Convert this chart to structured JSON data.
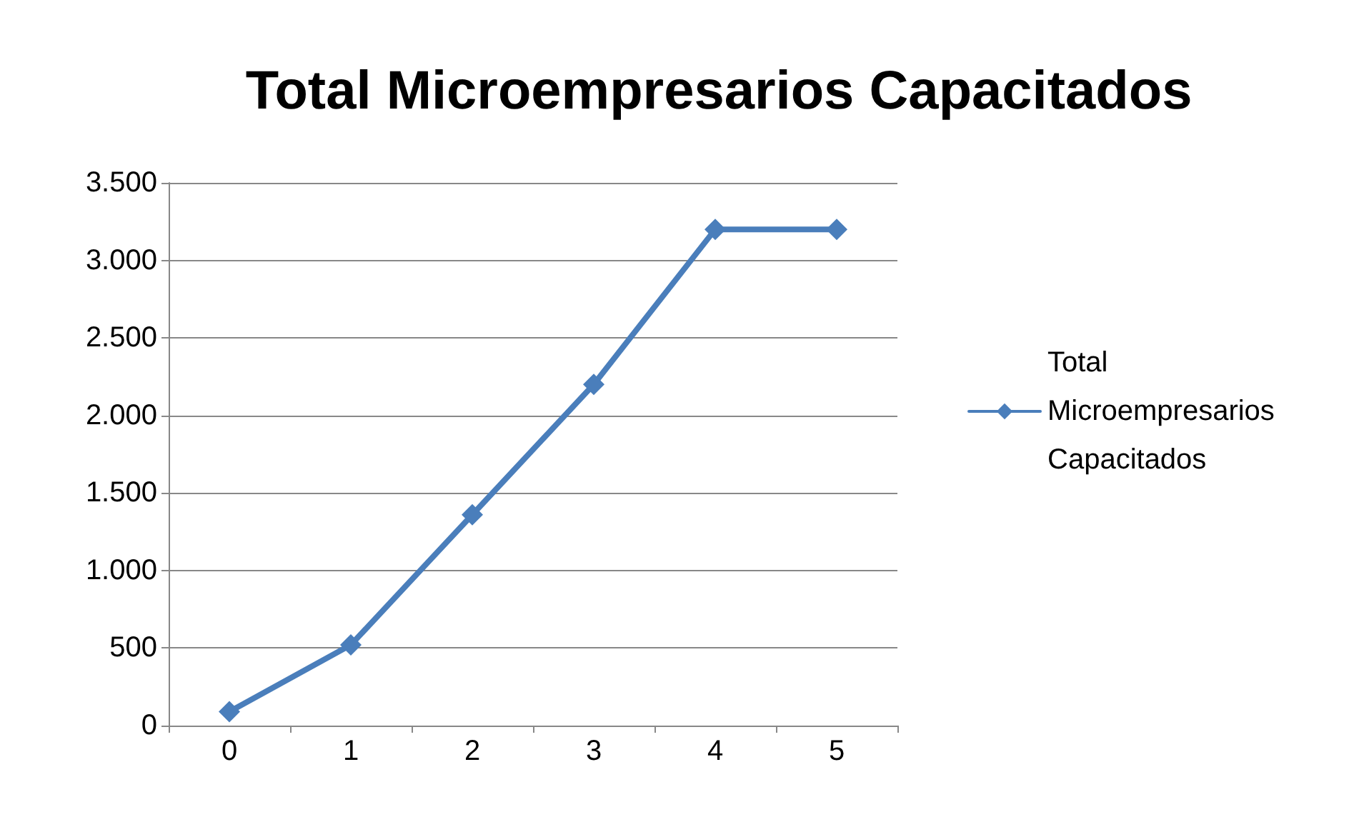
{
  "chart_data": {
    "type": "line",
    "title": "Total Microempresarios Capacitados",
    "categories": [
      "0",
      "1",
      "2",
      "3",
      "4",
      "5"
    ],
    "series": [
      {
        "name": "Total Microempresarios Capacitados",
        "color": "#4a7ebb",
        "values": [
          90,
          520,
          1360,
          2200,
          3200,
          3200
        ]
      }
    ],
    "ylim": [
      0,
      3500
    ],
    "yticks": [
      0,
      {
        "value": 500,
        "label": "500"
      },
      {
        "value": 1000,
        "label": "1.000"
      },
      {
        "value": 1500,
        "label": "1.500"
      },
      {
        "value": 2000,
        "label": "2.000"
      },
      {
        "value": 2500,
        "label": "2.500"
      },
      {
        "value": 3000,
        "label": "3.000"
      },
      {
        "value": 3500,
        "label": "3.500"
      }
    ],
    "grid": "y",
    "legend": "right",
    "marker": "diamond",
    "line_style": "solid"
  }
}
